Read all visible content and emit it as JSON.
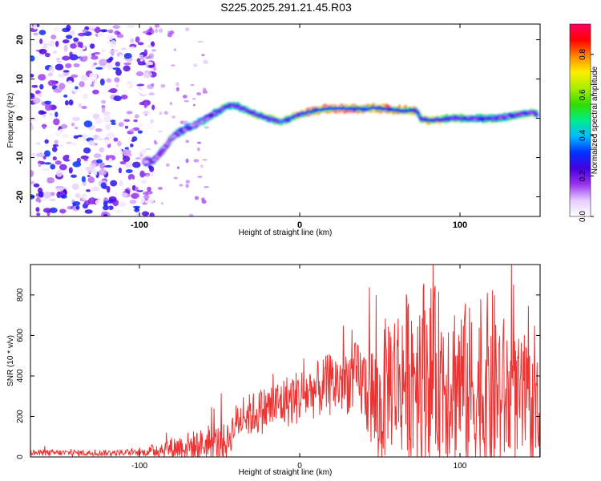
{
  "title": "S225.2025.291.21.45.R03",
  "chart_data": [
    {
      "type": "heatmap",
      "title": "S225.2025.291.21.45.R03",
      "xlabel": "Height of straight line (km)",
      "ylabel": "Frequency (Hz)",
      "xlim": [
        -168,
        150
      ],
      "ylim": [
        -25,
        24
      ],
      "xticks": [
        -100,
        0,
        100
      ],
      "xtick_labels": [
        "-100",
        "0",
        "100"
      ],
      "yticks": [
        -20,
        -10,
        0,
        10,
        20
      ],
      "ytick_labels": [
        "-20",
        "-10",
        "0",
        "10",
        "20"
      ],
      "grid": false,
      "colorbar": {
        "label": "Normalized spectral amplitude",
        "range": [
          0,
          0.95
        ],
        "ticks": [
          0,
          0.2,
          0.4,
          0.6,
          0.8
        ],
        "tick_labels": [
          "0.0",
          "0.2",
          "0.4",
          "0.6",
          "0.8"
        ],
        "colors": [
          "#ffffff",
          "#e6ccff",
          "#9933ee",
          "#4400dd",
          "#0033ff",
          "#00bbff",
          "#00ee88",
          "#33dd00",
          "#aaee00",
          "#ffee00",
          "#ff8800",
          "#ff0000",
          "#ff0066"
        ]
      },
      "ridge": {
        "x": [
          -97,
          -92,
          -88,
          -84,
          -80,
          -75,
          -70,
          -65,
          -60,
          -56,
          -52,
          -48,
          -44,
          -40,
          -36,
          -32,
          -28,
          -24,
          -20,
          -16,
          -12,
          -8,
          -4,
          0,
          5,
          10,
          15,
          20,
          25,
          30,
          35,
          40,
          45,
          50,
          55,
          60,
          65,
          70,
          73,
          76,
          80,
          85,
          90,
          95,
          100,
          105,
          110,
          115,
          120,
          125,
          130,
          135,
          140,
          145,
          148
        ],
        "freq": [
          -11,
          -11,
          -9.5,
          -7.5,
          -5,
          -3.5,
          -2.5,
          -1.5,
          -0.5,
          0.5,
          1.5,
          2.5,
          3.2,
          3.2,
          2.5,
          1.8,
          1.2,
          0.6,
          0,
          -0.5,
          -1,
          -0.4,
          0.3,
          1,
          1.5,
          2,
          2.3,
          2.5,
          2.5,
          2.5,
          2.4,
          2.3,
          2.6,
          2.6,
          2.3,
          2,
          2,
          2.1,
          1.8,
          -0.3,
          -0.5,
          -0.4,
          -0.2,
          0,
          0,
          -0.2,
          -0.1,
          0,
          0,
          0.2,
          0.5,
          0.8,
          1.2,
          1.5,
          1
        ],
        "amplitude": [
          0.3,
          0.4,
          0.35,
          0.4,
          0.45,
          0.4,
          0.45,
          0.45,
          0.5,
          0.45,
          0.5,
          0.55,
          0.6,
          0.55,
          0.5,
          0.6,
          0.6,
          0.65,
          0.6,
          0.6,
          0.65,
          0.7,
          0.7,
          0.75,
          0.8,
          0.85,
          0.9,
          0.95,
          0.95,
          0.95,
          0.9,
          0.85,
          0.85,
          0.9,
          0.85,
          0.8,
          0.8,
          0.85,
          0.7,
          0.7,
          0.75,
          0.7,
          0.65,
          0.6,
          0.6,
          0.6,
          0.55,
          0.55,
          0.55,
          0.5,
          0.55,
          0.55,
          0.6,
          0.6,
          0.6
        ]
      },
      "noise_region_x": [
        -168,
        -97
      ]
    },
    {
      "type": "line",
      "xlabel": "Height of straight line (km)",
      "ylabel": "SNR (10 * v/v)",
      "xlim": [
        -168,
        150
      ],
      "ylim": [
        0,
        950
      ],
      "xticks": [
        -100,
        0,
        100
      ],
      "xtick_labels": [
        "-100",
        "0",
        "100"
      ],
      "yticks": [
        0,
        200,
        400,
        600,
        800
      ],
      "ytick_labels": [
        "0",
        "200",
        "400",
        "600",
        "800"
      ],
      "grid": false,
      "color": "#ee3333",
      "envelope": {
        "x": [
          -168,
          -150,
          -120,
          -100,
          -95,
          -90,
          -80,
          -70,
          -60,
          -50,
          -45,
          -40,
          -35,
          -30,
          -20,
          -10,
          0,
          10,
          20,
          30,
          35,
          40,
          45,
          50,
          55,
          60,
          65,
          70,
          75,
          80,
          90,
          100,
          110,
          120,
          130,
          140,
          150
        ],
        "baseline": [
          20,
          20,
          20,
          20,
          25,
          35,
          45,
          55,
          60,
          70,
          75,
          170,
          200,
          210,
          240,
          270,
          300,
          330,
          360,
          380,
          390,
          360,
          300,
          200,
          400,
          380,
          400,
          420,
          450,
          420,
          400,
          380,
          300,
          350,
          300,
          260,
          220
        ],
        "amplitude": [
          15,
          15,
          15,
          15,
          20,
          40,
          55,
          70,
          80,
          90,
          90,
          90,
          100,
          110,
          120,
          130,
          140,
          140,
          160,
          170,
          180,
          200,
          280,
          350,
          350,
          380,
          400,
          450,
          480,
          450,
          420,
          420,
          420,
          500,
          350,
          300,
          250
        ]
      }
    }
  ]
}
